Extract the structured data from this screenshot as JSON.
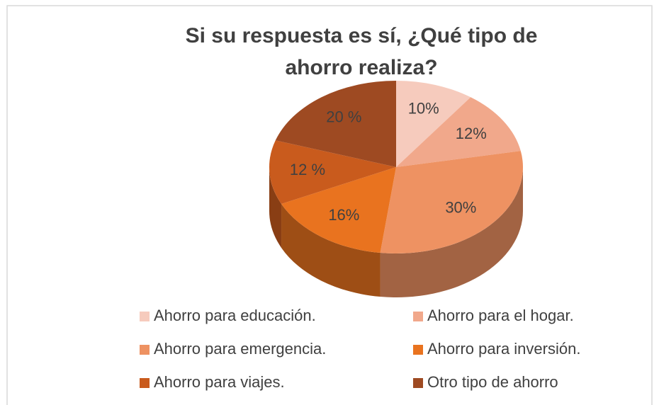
{
  "chart_data": {
    "type": "pie3d",
    "title": "Si su respuesta es sí, ¿Qué tipo de ahorro realiza?",
    "categories": [
      "Ahorro para educación.",
      "Ahorro para el hogar.",
      "Ahorro para emergencia.",
      "Ahorro para inversión.",
      "Ahorro para viajes.",
      "Otro tipo de ahorro"
    ],
    "values": [
      10,
      12,
      30,
      16,
      12,
      20
    ],
    "value_labels": [
      "10%",
      "12%",
      "30%",
      "16%",
      "12 %",
      "20 %"
    ],
    "colors": [
      "#f6cbbd",
      "#f1a88b",
      "#ee9262",
      "#e9731f",
      "#c95b1d",
      "#9e4a22"
    ],
    "legend": "bottom"
  }
}
